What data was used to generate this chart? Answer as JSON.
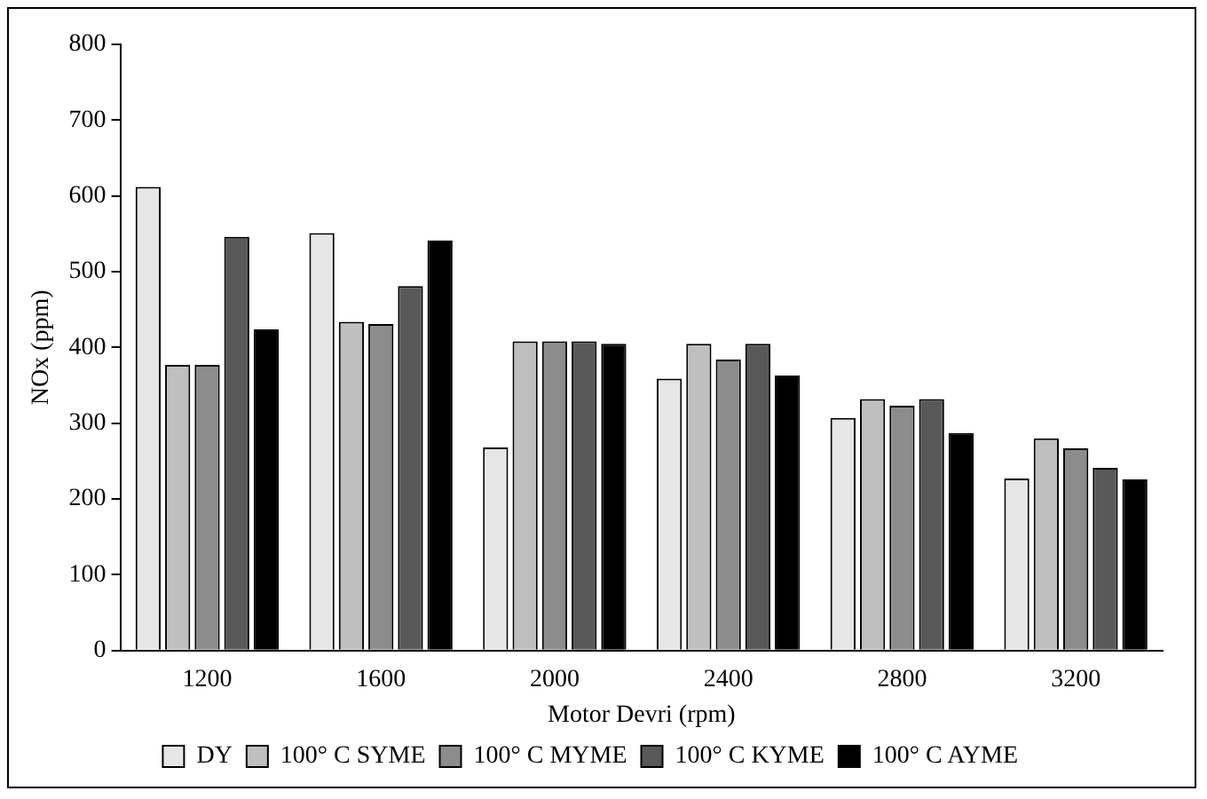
{
  "chart_data": {
    "type": "bar",
    "xlabel": "Motor Devri (rpm)",
    "ylabel": "NOx (ppm)",
    "categories": [
      "1200",
      "1600",
      "2000",
      "2400",
      "2800",
      "3200"
    ],
    "ylim": [
      0,
      800
    ],
    "yticks": [
      0,
      100,
      200,
      300,
      400,
      500,
      600,
      700,
      800
    ],
    "grid": false,
    "legend": "bottom",
    "series": [
      {
        "name": "DY",
        "color": "#e6e6e6",
        "values": [
          612,
          551,
          268,
          359,
          307,
          227
        ]
      },
      {
        "name": "100° C SYME",
        "color": "#bfbfbf",
        "values": [
          377,
          434,
          408,
          405,
          332,
          280
        ]
      },
      {
        "name": "100° C MYME",
        "color": "#8c8c8c",
        "values": [
          377,
          431,
          408,
          384,
          323,
          267
        ]
      },
      {
        "name": "100° C KYME",
        "color": "#595959",
        "values": [
          546,
          481,
          408,
          405,
          332,
          241
        ]
      },
      {
        "name": "100° C AYME",
        "color": "#000000",
        "values": [
          424,
          541,
          405,
          363,
          287,
          226
        ]
      }
    ]
  }
}
